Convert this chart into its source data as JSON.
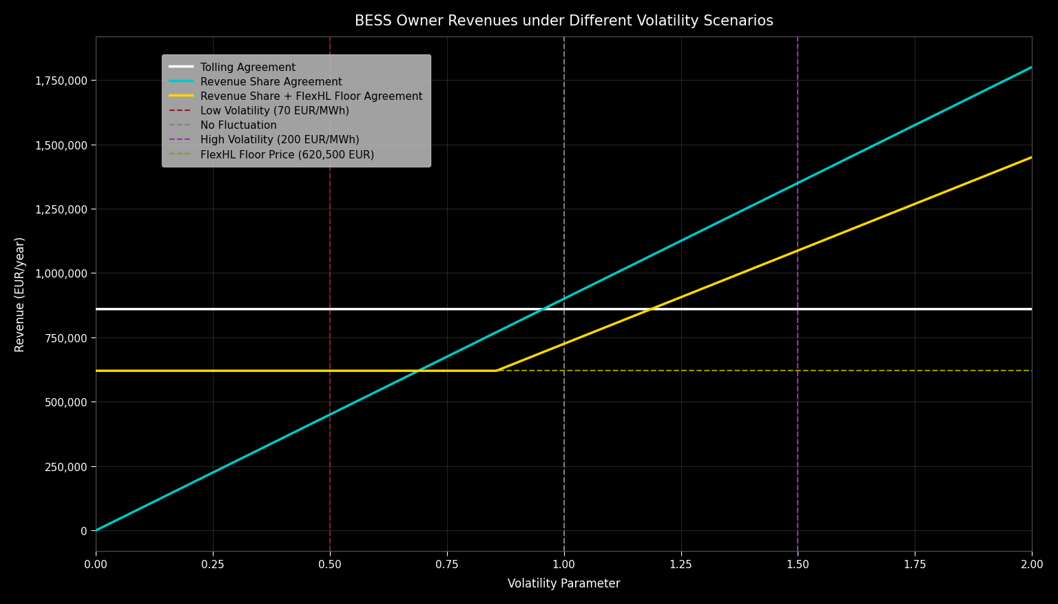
{
  "title": "BESS Owner Revenues under Different Volatility Scenarios",
  "xlabel": "Volatility Parameter",
  "ylabel": "Revenue (EUR/year)",
  "background_color": "#000000",
  "text_color": "#ffffff",
  "grid_color": "#3a3a3a",
  "x_min": 0.0,
  "x_max": 2.0,
  "y_min": -80000,
  "y_max": 1920000,
  "tolling_value": 860000,
  "tolling_color": "#ffffff",
  "tolling_label": "Tolling Agreement",
  "revenue_share_color": "#00c8c8",
  "revenue_share_label": "Revenue Share Agreement",
  "revenue_share_slope": 900000,
  "floor_color": "#ffd700",
  "floor_label": "Revenue Share + FlexHL Floor Agreement",
  "floor_price": 620500,
  "floor_slope": 725000,
  "low_vol_x": 0.5,
  "low_vol_color": "#8b2020",
  "low_vol_label": "Low Volatility (70 EUR/MWh)",
  "no_fluct_x": 1.0,
  "no_fluct_color": "#808080",
  "no_fluct_label": "No Fluctuation",
  "high_vol_x": 1.5,
  "high_vol_color": "#9933aa",
  "high_vol_label": "High Volatility (200 EUR/MWh)",
  "floor_price_color": "#999900",
  "floor_price_label": "FlexHL Floor Price (620,500 EUR)",
  "legend_facecolor": "#b8b8b8",
  "legend_edgecolor": "#b8b8b8",
  "legend_text_color": "#000000",
  "title_fontsize": 15,
  "label_fontsize": 12,
  "tick_fontsize": 11,
  "legend_fontsize": 11
}
